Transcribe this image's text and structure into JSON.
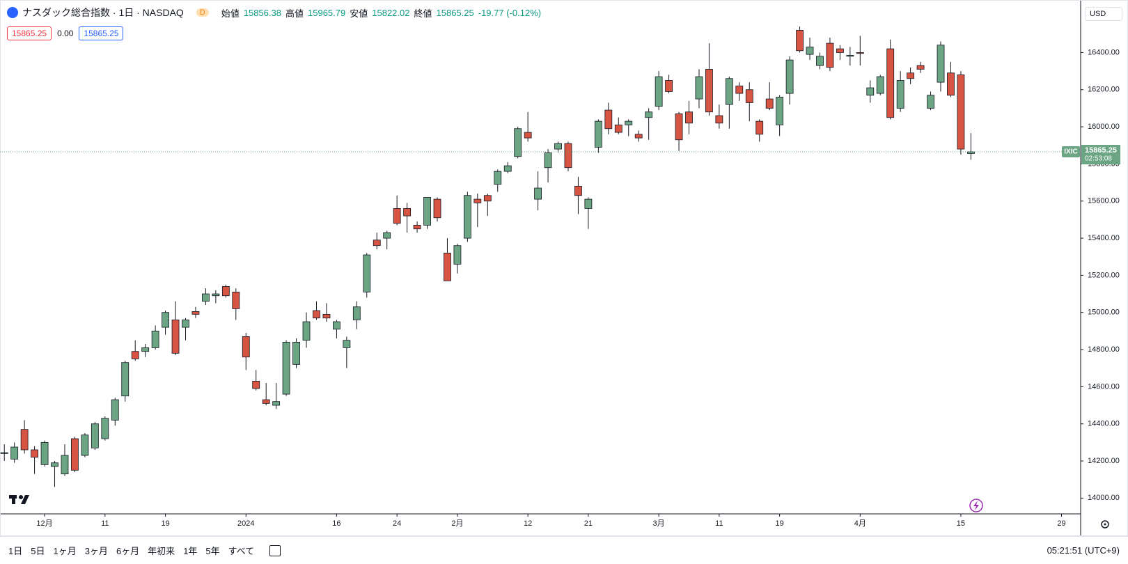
{
  "header": {
    "title": "ナスダック総合指数 · 1日 · NASDAQ",
    "interval_badge": "D",
    "open_label": "始値",
    "high_label": "高値",
    "low_label": "安値",
    "close_label": "終値",
    "change": "-19.77 (-0.12%)",
    "bid": "15865.25",
    "spread": "0.00",
    "ask": "15865.25",
    "currency": "USD",
    "symbol_tag": "IXIC",
    "countdown": "02:53:08"
  },
  "chart_data": {
    "type": "candlestick",
    "up_color": "#6ba583",
    "down_color": "#d75442",
    "grid": false,
    "open": [
      14240,
      14210,
      14370,
      14260,
      14180,
      14170,
      14130,
      14320,
      14230,
      14270,
      14320,
      14420,
      14550,
      14790,
      14790,
      14810,
      14920,
      14960,
      14920,
      15005,
      15060,
      15090,
      15140,
      15110,
      14870,
      14630,
      14530,
      14500,
      14560,
      14720,
      14850,
      15010,
      14990,
      14910,
      14810,
      14960,
      15110,
      15390,
      15400,
      15560,
      15560,
      15470,
      15470,
      15610,
      15320,
      15260,
      15400,
      15610,
      15630,
      15690,
      15760,
      15840,
      15970,
      15610,
      15780,
      15880,
      15910,
      15680,
      15560,
      15890,
      16090,
      16010,
      16010,
      15960,
      16050,
      16110,
      16250,
      16070,
      16080,
      16150,
      16310,
      16060,
      16120,
      16220,
      16200,
      16030,
      16150,
      16010,
      16180,
      16520,
      16390,
      16330,
      16450,
      16420,
      16380,
      16400,
      16170,
      16180,
      16420,
      16100,
      16290,
      16330,
      16100,
      16240,
      16290,
      16280,
      15856.38
    ],
    "high": [
      14290,
      14300,
      14420,
      14280,
      14310,
      14200,
      14290,
      14330,
      14350,
      14410,
      14440,
      14540,
      14740,
      14850,
      14830,
      14930,
      15010,
      15060,
      14970,
      15030,
      15130,
      15120,
      15150,
      15130,
      14890,
      14690,
      14620,
      14620,
      14850,
      14860,
      15000,
      15060,
      15050,
      14960,
      14870,
      15060,
      15320,
      15430,
      15440,
      15630,
      15590,
      15490,
      15620,
      15620,
      15400,
      15370,
      15650,
      15640,
      15640,
      15770,
      15810,
      16000,
      16080,
      15760,
      15880,
      15920,
      15920,
      15730,
      15620,
      16040,
      16130,
      16050,
      16040,
      15980,
      16100,
      16300,
      16280,
      16080,
      16140,
      16310,
      16450,
      16120,
      16270,
      16240,
      16240,
      16040,
      16240,
      16170,
      16380,
      16540,
      16480,
      16400,
      16480,
      16440,
      16430,
      16490,
      16250,
      16280,
      16470,
      16300,
      16320,
      16350,
      16190,
      16460,
      16350,
      16300,
      15965.79
    ],
    "low": [
      14200,
      14190,
      14240,
      14130,
      14170,
      14060,
      14120,
      14140,
      14220,
      14260,
      14310,
      14390,
      14520,
      14740,
      14760,
      14800,
      14880,
      14770,
      14850,
      14970,
      15040,
      15050,
      15080,
      14960,
      14690,
      14580,
      14500,
      14480,
      14550,
      14700,
      14810,
      14960,
      14950,
      14860,
      14700,
      14910,
      15080,
      15340,
      15340,
      15470,
      15430,
      15430,
      15450,
      15490,
      15170,
      15210,
      15380,
      15460,
      15520,
      15650,
      15750,
      15830,
      15920,
      15550,
      15700,
      15860,
      15760,
      15530,
      15450,
      15860,
      15960,
      15960,
      15950,
      15920,
      15930,
      16090,
      16180,
      15870,
      15960,
      16100,
      16060,
      15990,
      15990,
      16140,
      16030,
      15920,
      16090,
      15950,
      16120,
      16400,
      16360,
      16310,
      16300,
      16360,
      16330,
      16330,
      16130,
      16170,
      16040,
      16080,
      16230,
      16290,
      16090,
      16190,
      16160,
      15850,
      15822.02
    ],
    "close": [
      14245,
      14275,
      14260,
      14220,
      14300,
      14190,
      14230,
      14150,
      14340,
      14400,
      14430,
      14530,
      14730,
      14750,
      14810,
      14900,
      15000,
      14780,
      14960,
      14990,
      15100,
      15100,
      15090,
      15020,
      14760,
      14590,
      14510,
      14520,
      14840,
      14840,
      14950,
      14970,
      14970,
      14950,
      14850,
      15030,
      15310,
      15360,
      15430,
      15480,
      15520,
      15450,
      15620,
      15510,
      15170,
      15360,
      15630,
      15590,
      15600,
      15760,
      15790,
      15990,
      15940,
      15670,
      15860,
      15910,
      15780,
      15630,
      15610,
      16030,
      15990,
      15970,
      16030,
      15940,
      16080,
      16270,
      16190,
      15930,
      16020,
      16270,
      16080,
      16020,
      16260,
      16180,
      16130,
      15960,
      16100,
      16160,
      16360,
      16410,
      16430,
      16380,
      16320,
      16400,
      16385,
      16395,
      16210,
      16270,
      16050,
      16250,
      16260,
      16310,
      16170,
      16440,
      16170,
      15880,
      15865.25
    ],
    "xlim": [
      -0.43,
      106.9
    ],
    "xticks": [
      {
        "value": 4,
        "label": "12月"
      },
      {
        "value": 10,
        "label": "11"
      },
      {
        "value": 16,
        "label": "19"
      },
      {
        "value": 24,
        "label": "2024"
      },
      {
        "value": 33,
        "label": "16"
      },
      {
        "value": 39,
        "label": "24"
      },
      {
        "value": 45,
        "label": "2月"
      },
      {
        "value": 52,
        "label": "12"
      },
      {
        "value": 58,
        "label": "21"
      },
      {
        "value": 65,
        "label": "3月"
      },
      {
        "value": 71,
        "label": "11"
      },
      {
        "value": 77,
        "label": "19"
      },
      {
        "value": 85,
        "label": "4月"
      },
      {
        "value": 95,
        "label": "15"
      },
      {
        "value": 105,
        "label": "29"
      }
    ],
    "ylim": [
      13915,
      16683
    ],
    "yticks": [
      {
        "value": 14000,
        "label": "14000.00"
      },
      {
        "value": 14200,
        "label": "14200.00"
      },
      {
        "value": 14400,
        "label": "14400.00"
      },
      {
        "value": 14600,
        "label": "14600.00"
      },
      {
        "value": 14800,
        "label": "14800.00"
      },
      {
        "value": 15000,
        "label": "15000.00"
      },
      {
        "value": 15200,
        "label": "15200.00"
      },
      {
        "value": 15400,
        "label": "15400.00"
      },
      {
        "value": 15600,
        "label": "15600.00"
      },
      {
        "value": 15800,
        "label": "15800.00"
      },
      {
        "value": 16000,
        "label": "16000.00"
      },
      {
        "value": 16200,
        "label": "16200.00"
      },
      {
        "value": 16400,
        "label": "16400.00"
      }
    ]
  },
  "toolbar": {
    "ranges": [
      "1日",
      "5日",
      "1ヶ月",
      "3ヶ月",
      "6ヶ月",
      "年初来",
      "1年",
      "5年",
      "すべて"
    ],
    "clock": "05:21:51 (UTC+9)"
  }
}
